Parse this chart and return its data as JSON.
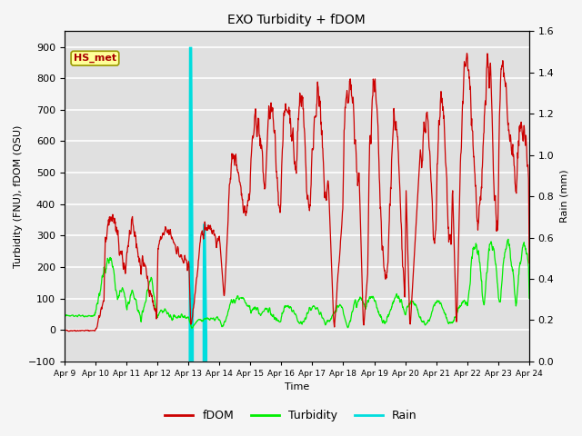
{
  "title": "EXO Turbidity + fDOM",
  "xlabel": "Time",
  "ylabel_left": "Turbidity (FNU), fDOM (QSU)",
  "ylabel_right": "Rain (mm)",
  "ylim_left": [
    -100,
    950
  ],
  "ylim_right": [
    0.0,
    1.6
  ],
  "yticks_left": [
    -100,
    0,
    100,
    200,
    300,
    400,
    500,
    600,
    700,
    800,
    900
  ],
  "yticks_right": [
    0.0,
    0.2,
    0.4,
    0.6,
    0.8,
    1.0,
    1.2,
    1.4,
    1.6
  ],
  "x_tick_labels": [
    "Apr 9",
    "Apr 10",
    "Apr 11",
    "Apr 12",
    "Apr 13",
    "Apr 14",
    "Apr 15",
    "Apr 16",
    "Apr 17",
    "Apr 18",
    "Apr 19",
    "Apr 20",
    "Apr 21",
    "Apr 22",
    "Apr 23",
    "Apr 24"
  ],
  "annotation_text": "HS_met",
  "fdom_color": "#cc0000",
  "turbidity_color": "#00ee00",
  "rain_color": "#00dddd",
  "background_color": "#e0e0e0",
  "grid_color": "#ffffff",
  "legend_labels": [
    "fDOM",
    "Turbidity",
    "Rain"
  ],
  "figsize": [
    6.4,
    4.8
  ],
  "dpi": 100
}
